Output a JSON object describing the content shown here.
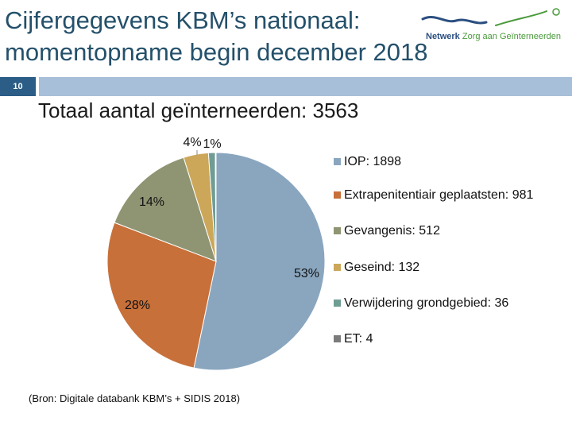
{
  "slide": {
    "title": "Cijfergegevens KBM’s nationaal: momentopname begin december 2018",
    "number": "10",
    "logo": {
      "brand_part1": "Netwerk",
      "brand_part2": "Zorg aan Geïnterneerden"
    },
    "source": "(Bron: Digitale databank KBM’s + SIDIS 2018)"
  },
  "chart_data": {
    "type": "pie",
    "title": "Totaal aantal geïnterneerden: 3563",
    "total": 3563,
    "slices": [
      {
        "name": "IOP",
        "legend": "IOP: 1898",
        "value": 1898,
        "pct_label": "53%",
        "color": "#8aa6bf"
      },
      {
        "name": "Extrapenitentiair geplaatsten",
        "legend": "Extrapenitentiair geplaatsten: 981",
        "value": 981,
        "pct_label": "28%",
        "color": "#c8703a"
      },
      {
        "name": "Gevangenis",
        "legend": "Gevangenis: 512",
        "value": 512,
        "pct_label": "14%",
        "color": "#8f9572"
      },
      {
        "name": "Geseind",
        "legend": "Geseind: 132",
        "value": 132,
        "pct_label": "4%",
        "color": "#cca75a"
      },
      {
        "name": "Verwijdering grondgebied",
        "legend": "Verwijdering grondgebied: 36",
        "value": 36,
        "pct_label": "1%",
        "color": "#6f9d94"
      },
      {
        "name": "ET",
        "legend": "ET: 4",
        "value": 4,
        "pct_label": "",
        "color": "#7b7b7b"
      }
    ],
    "legend_position": "right"
  }
}
